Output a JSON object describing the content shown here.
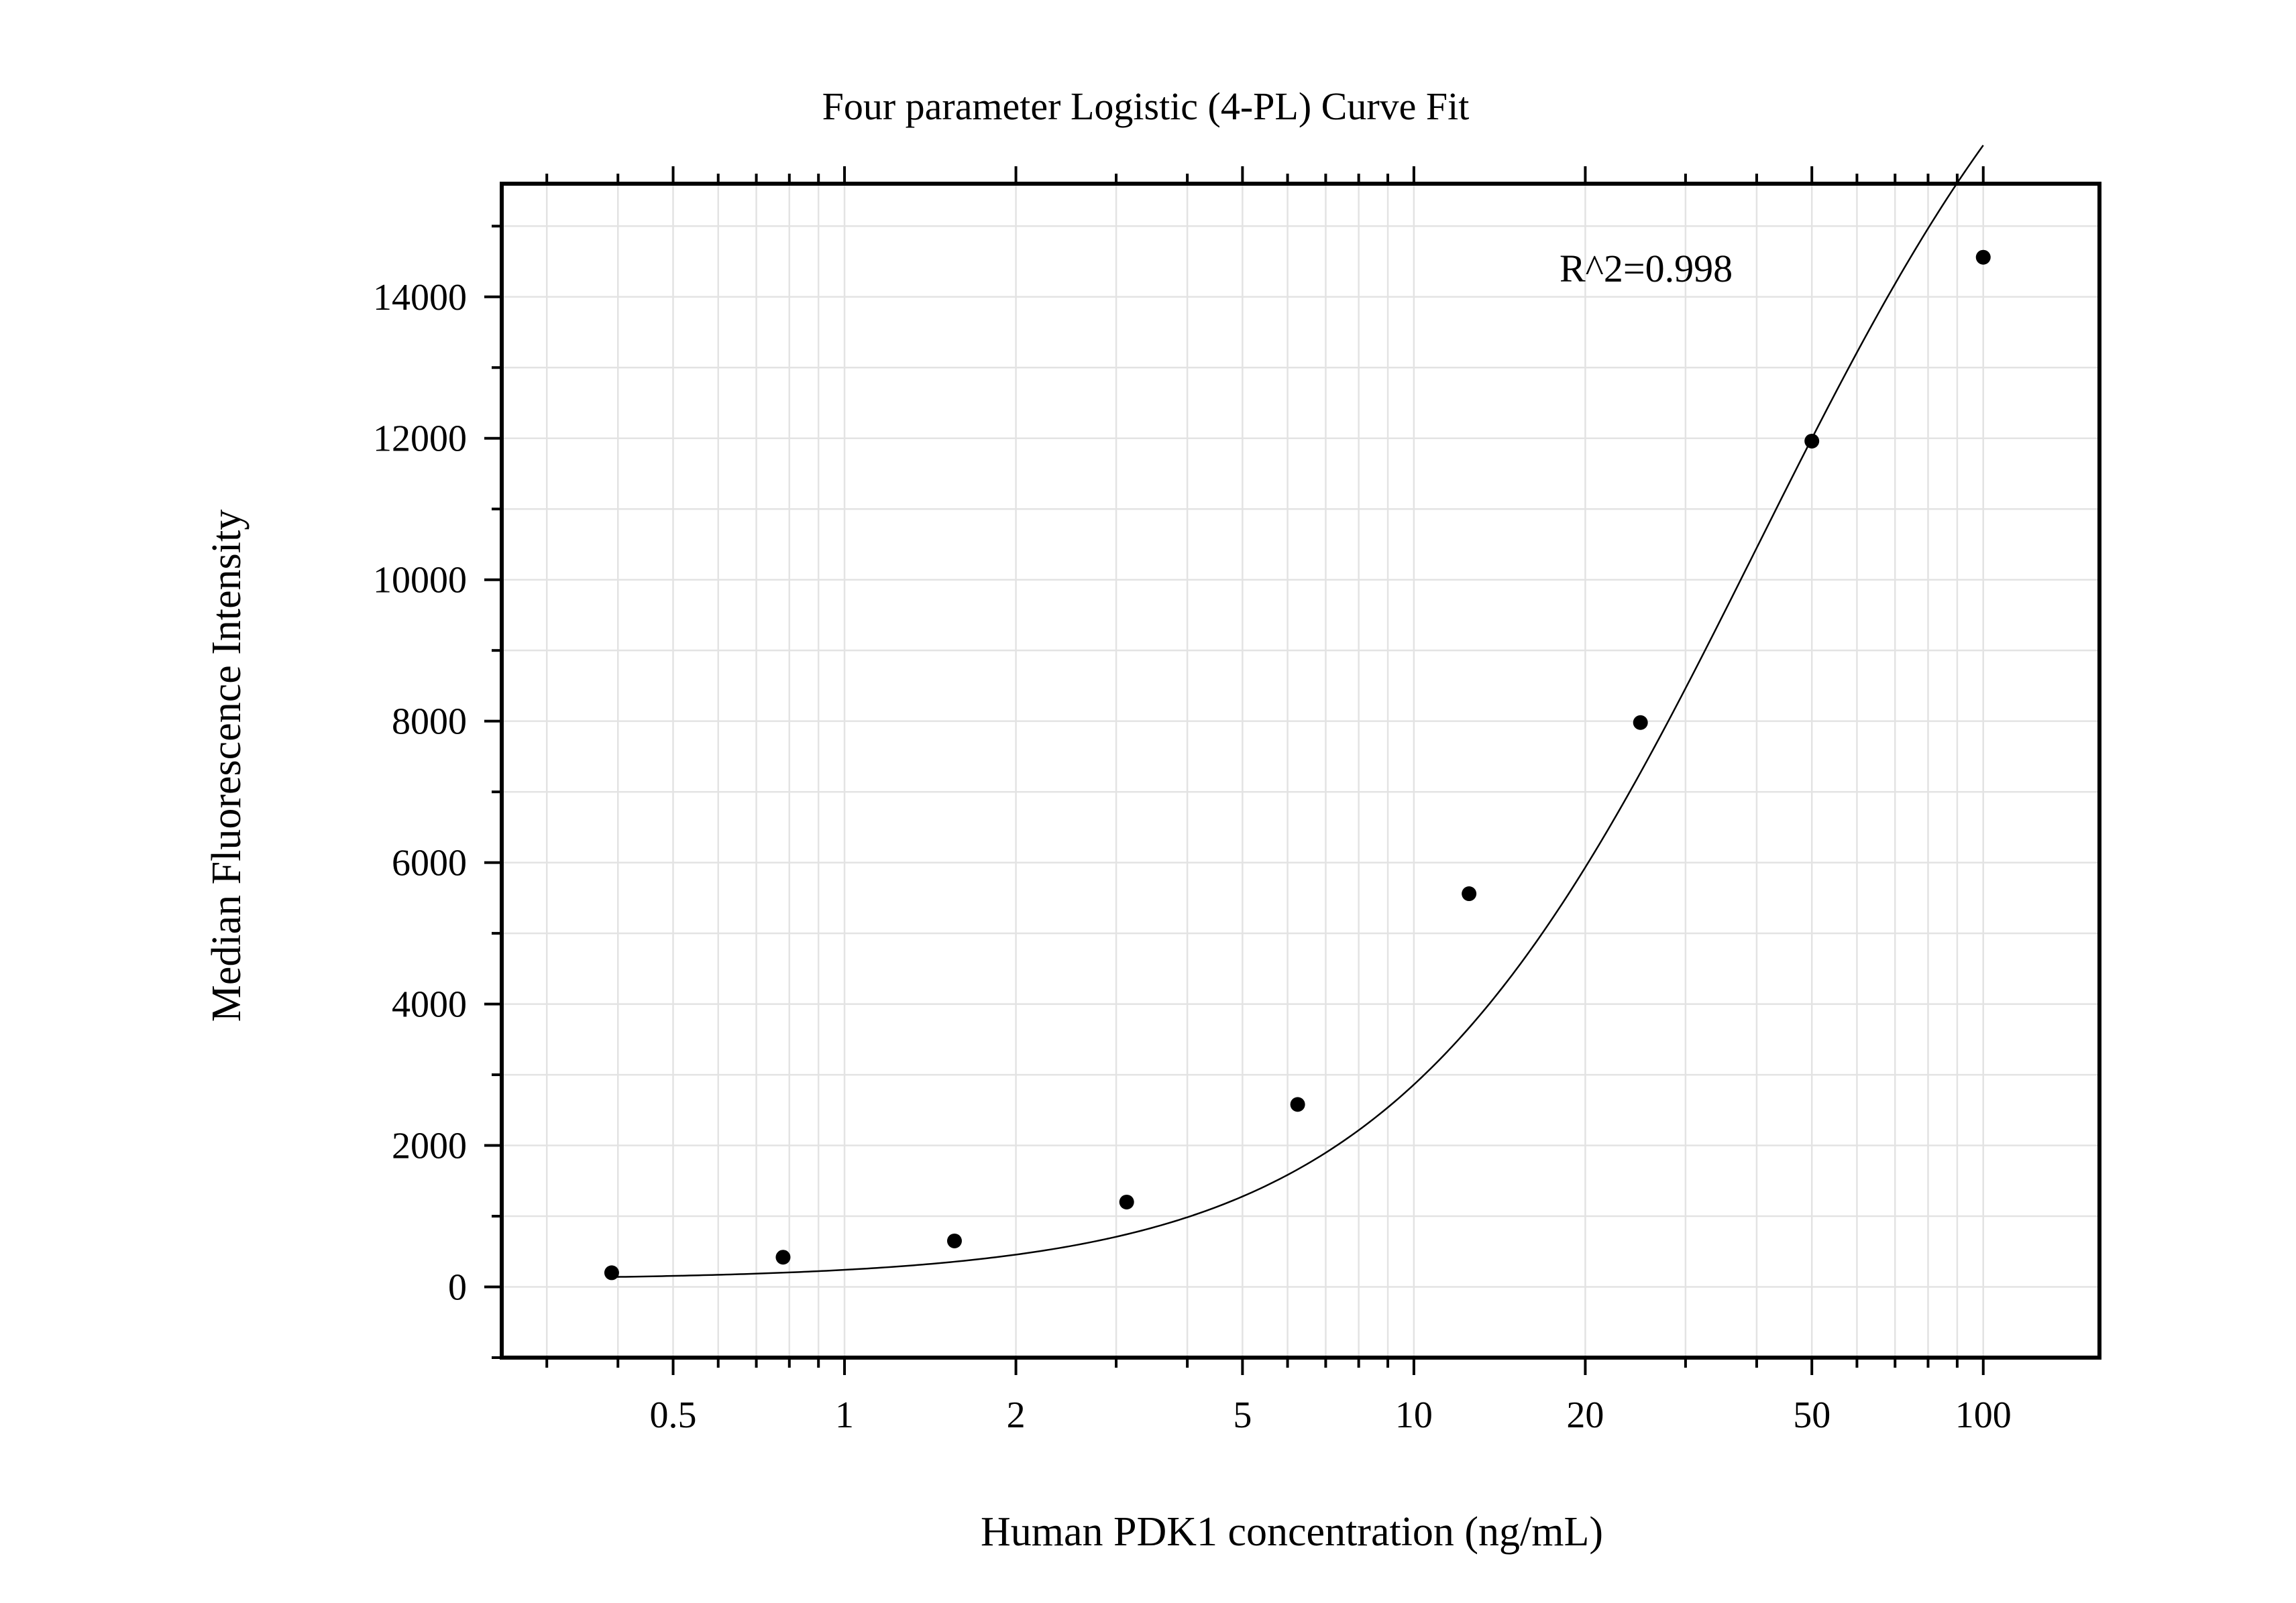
{
  "chart_data": {
    "type": "scatter",
    "title": "Four parameter Logistic (4-PL) Curve Fit",
    "xlabel": "Human PDK1 concentration (ng/mL)",
    "ylabel": "Median Fluorescence Intensity",
    "x_scale": "log",
    "xlim": [
      0.25,
      160
    ],
    "ylim": [
      -1000,
      15600
    ],
    "grid": true,
    "x_ticks": [
      {
        "value": 0.5,
        "label": "0.5"
      },
      {
        "value": 1,
        "label": "1"
      },
      {
        "value": 2,
        "label": "2"
      },
      {
        "value": 5,
        "label": "5"
      },
      {
        "value": 10,
        "label": "10"
      },
      {
        "value": 20,
        "label": "20"
      },
      {
        "value": 50,
        "label": "50"
      },
      {
        "value": 100,
        "label": "100"
      }
    ],
    "y_ticks": [
      {
        "value": 0,
        "label": "0"
      },
      {
        "value": 2000,
        "label": "2000"
      },
      {
        "value": 4000,
        "label": "4000"
      },
      {
        "value": 6000,
        "label": "6000"
      },
      {
        "value": 8000,
        "label": "8000"
      },
      {
        "value": 10000,
        "label": "10000"
      },
      {
        "value": 12000,
        "label": "12000"
      },
      {
        "value": 14000,
        "label": "14000"
      }
    ],
    "points": [
      {
        "x": 0.39,
        "y": 200
      },
      {
        "x": 0.78,
        "y": 420
      },
      {
        "x": 1.56,
        "y": 650
      },
      {
        "x": 3.13,
        "y": 1200
      },
      {
        "x": 6.25,
        "y": 2580
      },
      {
        "x": 12.5,
        "y": 5560
      },
      {
        "x": 25,
        "y": 7980
      },
      {
        "x": 50,
        "y": 11960
      },
      {
        "x": 100,
        "y": 14560
      }
    ],
    "fit": {
      "model": "4PL",
      "A": 100,
      "B": 1.35,
      "C": 40,
      "D": 20800,
      "x_range": [
        0.39,
        100
      ]
    },
    "annotation": "R^2=0.998"
  }
}
